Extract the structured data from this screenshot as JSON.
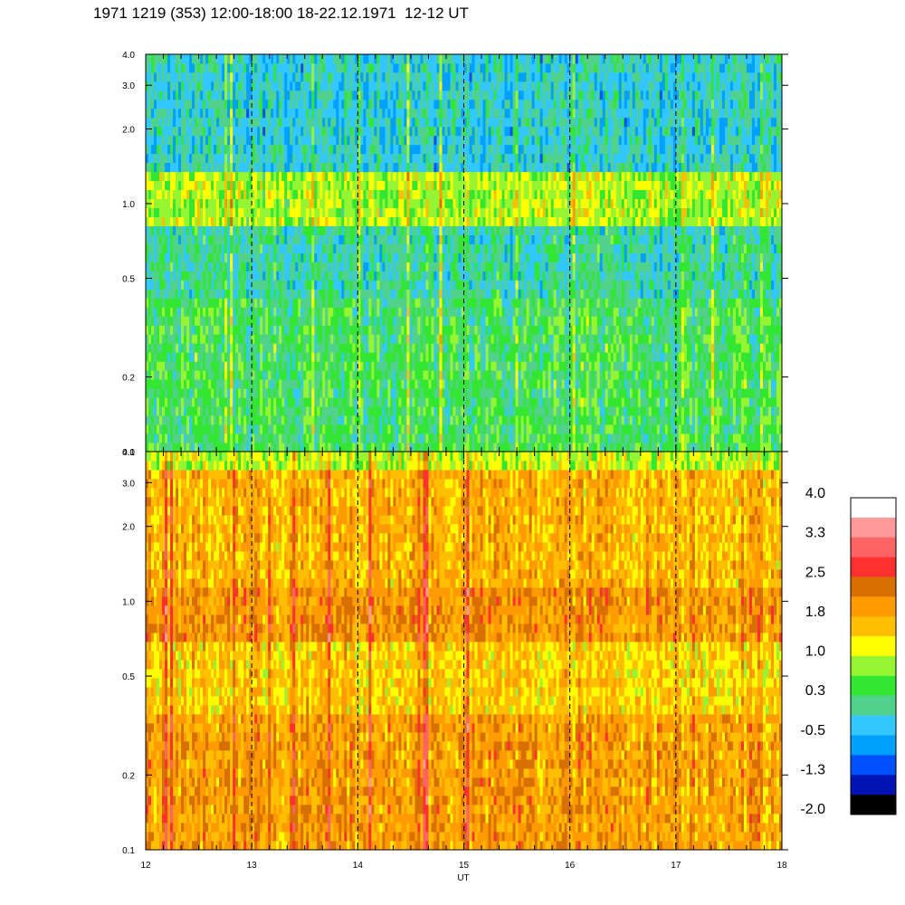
{
  "title": "1971 1219 (353) 12:00-18:00 18-22.12.1971  12-12 UT",
  "chart_data": [
    {
      "type": "heatmap",
      "panel": "upper",
      "xlim": [
        12,
        18
      ],
      "ylim": [
        0.1,
        4.0
      ],
      "yscale": "log",
      "x_ticks": [
        12,
        13,
        14,
        15,
        16,
        17,
        18
      ],
      "y_ticks": [
        0.1,
        0.2,
        0.5,
        1.0,
        2.0,
        3.0,
        4.0
      ],
      "y_tick_labels": [
        "0.1",
        "0.2",
        "0.5",
        "1.0",
        "2.0",
        "3.0",
        "4.0"
      ],
      "dashed_verticals": [
        13,
        14,
        15,
        16,
        17
      ],
      "value_bands": [
        {
          "ymin": 0.1,
          "ymax": 0.4,
          "value": 0.3
        },
        {
          "ymin": 0.4,
          "ymax": 0.8,
          "value": 0.0
        },
        {
          "ymin": 0.8,
          "ymax": 1.3,
          "value": 0.9
        },
        {
          "ymin": 1.3,
          "ymax": 4.0,
          "value": -0.2
        }
      ]
    },
    {
      "type": "heatmap",
      "panel": "lower",
      "xlim": [
        12,
        18
      ],
      "ylim": [
        0.1,
        4.0
      ],
      "yscale": "log",
      "x_ticks": [
        12,
        13,
        14,
        15,
        16,
        17,
        18
      ],
      "x_tick_labels": [
        "12",
        "13",
        "14",
        "15",
        "16",
        "17",
        "18"
      ],
      "xlabel": "UT",
      "y_ticks": [
        0.1,
        0.2,
        0.5,
        1.0,
        2.0,
        3.0,
        4.0
      ],
      "y_tick_labels": [
        "0.1",
        "0.2",
        "0.5",
        "1.0",
        "2.0",
        "3.0",
        "4.0"
      ],
      "dashed_verticals": [
        13,
        14,
        15,
        16,
        17
      ],
      "value_bands": [
        {
          "ymin": 0.1,
          "ymax": 0.35,
          "value": 1.9
        },
        {
          "ymin": 0.35,
          "ymax": 0.7,
          "value": 1.5
        },
        {
          "ymin": 0.7,
          "ymax": 1.1,
          "value": 2.0
        },
        {
          "ymin": 1.1,
          "ymax": 3.5,
          "value": 1.7
        },
        {
          "ymin": 3.5,
          "ymax": 4.0,
          "value": 1.0
        }
      ]
    }
  ],
  "colorbar": {
    "labels": [
      "4.0",
      "3.3",
      "2.5",
      "1.8",
      "1.0",
      "0.3",
      "-0.5",
      "-1.3",
      "-2.0"
    ],
    "colors": [
      "#ffffff",
      "#ff9a9a",
      "#ff6464",
      "#ff3030",
      "#d87000",
      "#ff9a00",
      "#ffbe00",
      "#ffff00",
      "#96f532",
      "#32e632",
      "#50d28c",
      "#32c8ff",
      "#00a0ff",
      "#0050ff",
      "#0014b4",
      "#000000"
    ],
    "vmin": -2.0,
    "vmax": 4.0
  }
}
